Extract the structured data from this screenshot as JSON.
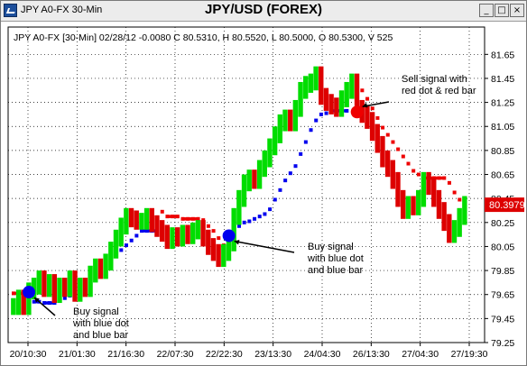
{
  "window": {
    "title": "JPY A0-FX 30-Min",
    "buttons": {
      "minimize": "_",
      "maximize": "□",
      "close": "×"
    }
  },
  "chart_data": {
    "type": "line",
    "title": "JPY/USD (FOREX)",
    "info_line": "JPY A0-FX [30-Min] 02/28/12  -0.0080 C 80.5310, H 80.5520, L 80.5000, O 80.5300, V 525",
    "ylim": [
      79.25,
      81.75
    ],
    "y_ticks": [
      "81.65",
      "81.45",
      "81.25",
      "81.05",
      "80.85",
      "80.65",
      "80.45",
      "80.25",
      "80.05",
      "79.85",
      "79.65",
      "79.45",
      "79.25"
    ],
    "y_tick_values": [
      81.65,
      81.45,
      81.25,
      81.05,
      80.85,
      80.65,
      80.45,
      80.25,
      80.05,
      79.85,
      79.65,
      79.45,
      79.25
    ],
    "x_ticks": [
      "20/10:30",
      "21/01:30",
      "21/16:30",
      "22/07:30",
      "22/22:30",
      "23/13:30",
      "24/04:30",
      "26/13:30",
      "27/04:30",
      "27/19:30"
    ],
    "last_price_label": "80.3979",
    "last_price": 80.3979,
    "grid": true,
    "colors": {
      "up_bar": "#00dd00",
      "down_bar": "#dd0000",
      "buy_signal": "#0000ee",
      "sell_signal": "#ee0000",
      "price_label_bg": "#dd0000"
    },
    "annotations": [
      {
        "text_lines": [
          "Buy signal",
          "with blue dot",
          "and blue bar"
        ],
        "signal": "buy",
        "bar_index": 3,
        "price": 79.67
      },
      {
        "text_lines": [
          "Buy signal",
          "with blue dot",
          "and blue bar"
        ],
        "signal": "buy",
        "bar_index": 42,
        "price": 80.14
      },
      {
        "text_lines": [
          "Sell signal with",
          "red dot & red bar"
        ],
        "signal": "sell",
        "bar_index": 67,
        "price": 81.17
      }
    ],
    "series": [
      {
        "name": "",
        "values": [
          79.55,
          79.62,
          79.55,
          79.68,
          79.72,
          79.78,
          79.7,
          79.75,
          79.65,
          79.72,
          79.7,
          79.78,
          79.66,
          79.72,
          79.7,
          79.82,
          79.88,
          79.85,
          79.92,
          80.02,
          80.12,
          80.22,
          80.3,
          80.28,
          80.26,
          80.26,
          80.3,
          80.24,
          80.2,
          80.16,
          80.1,
          80.14,
          80.12,
          80.16,
          80.14,
          80.18,
          80.2,
          80.12,
          80.05,
          80.0,
          79.95,
          80.0,
          80.08,
          80.3,
          80.45,
          80.58,
          80.62,
          80.6,
          80.7,
          80.78,
          80.88,
          80.98,
          81.08,
          81.12,
          81.08,
          81.2,
          81.35,
          81.4,
          81.42,
          81.48,
          81.3,
          81.25,
          81.22,
          81.2,
          81.28,
          81.35,
          81.42,
          81.2,
          81.15,
          81.1,
          81.0,
          80.9,
          80.78,
          80.7,
          80.6,
          80.45,
          80.35,
          80.4,
          80.38,
          80.45,
          80.6,
          80.55,
          80.45,
          80.35,
          80.25,
          80.15,
          80.2,
          80.3,
          80.4
        ]
      }
    ],
    "signal_line": [
      79.66,
      79.66,
      79.66,
      79.62,
      79.59,
      79.59,
      79.58,
      79.58,
      79.58,
      79.6,
      79.62,
      79.64,
      79.66,
      79.68,
      79.72,
      79.76,
      79.82,
      79.86,
      79.9,
      79.94,
      79.98,
      80.02,
      80.06,
      80.1,
      80.14,
      80.18,
      80.18,
      80.18,
      80.18,
      80.34,
      80.3,
      80.3,
      80.3,
      80.28,
      80.28,
      80.28,
      80.28,
      80.27,
      80.22,
      80.18,
      80.12,
      80.06,
      80.14,
      80.2,
      80.22,
      80.25,
      80.26,
      80.28,
      80.3,
      80.32,
      80.36,
      80.44,
      80.52,
      80.6,
      80.66,
      80.72,
      80.82,
      80.92,
      81.02,
      81.1,
      81.15,
      81.16,
      81.18,
      81.18,
      81.18,
      81.18,
      81.46,
      81.44,
      81.35,
      81.28,
      81.2,
      81.12,
      81.04,
      80.98,
      80.92,
      80.86,
      80.8,
      80.74,
      80.68,
      80.65,
      80.62,
      80.62,
      80.62,
      80.62,
      80.62,
      80.58,
      80.5,
      80.44,
      80.43
    ],
    "signal_side": [
      "sell",
      "sell",
      "sell",
      "buy",
      "buy",
      "buy",
      "buy",
      "buy",
      "buy",
      "buy",
      "buy",
      "buy",
      "buy",
      "buy",
      "buy",
      "buy",
      "buy",
      "buy",
      "buy",
      "buy",
      "buy",
      "buy",
      "buy",
      "buy",
      "buy",
      "buy",
      "buy",
      "buy",
      "buy",
      "sell",
      "sell",
      "sell",
      "sell",
      "sell",
      "sell",
      "sell",
      "sell",
      "sell",
      "sell",
      "sell",
      "sell",
      "sell",
      "buy",
      "buy",
      "buy",
      "buy",
      "buy",
      "buy",
      "buy",
      "buy",
      "buy",
      "buy",
      "buy",
      "buy",
      "buy",
      "buy",
      "buy",
      "buy",
      "buy",
      "buy",
      "buy",
      "buy",
      "buy",
      "buy",
      "buy",
      "buy",
      "sell",
      "sell",
      "sell",
      "sell",
      "sell",
      "sell",
      "sell",
      "sell",
      "sell",
      "sell",
      "sell",
      "sell",
      "sell",
      "sell",
      "sell",
      "sell",
      "sell",
      "sell",
      "sell",
      "sell",
      "sell",
      "sell",
      "sell"
    ]
  }
}
